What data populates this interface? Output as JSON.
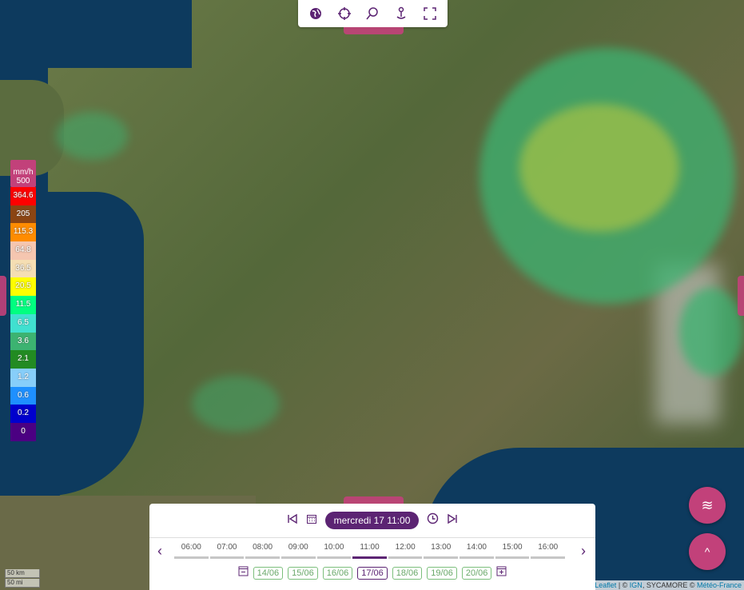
{
  "toolbar": {
    "icons": [
      "globe-icon",
      "locate-icon",
      "search-icon",
      "location-pin-icon",
      "fullscreen-icon"
    ]
  },
  "legend": {
    "unit": "mm/h",
    "max": "500",
    "colors": [
      "#ff0000",
      "#8b4513",
      "#ff8c00",
      "#f5c6b0",
      "#f5deb3",
      "#ffff00",
      "#00ff80",
      "#40e0d0",
      "#3cb371",
      "#228b22",
      "#87cefa",
      "#1e90ff",
      "#0000cd",
      "#4b0082"
    ],
    "values": [
      "364.6",
      "205",
      "115.3",
      "64.8",
      "36.5",
      "20.5",
      "11.5",
      "6.5",
      "3.6",
      "2.1",
      "1.2",
      "0.6",
      "0.2",
      "0"
    ]
  },
  "timeline": {
    "current": "mercredi 17 11:00",
    "hours": [
      "06:00",
      "07:00",
      "08:00",
      "09:00",
      "10:00",
      "11:00",
      "12:00",
      "13:00",
      "14:00",
      "15:00",
      "16:00"
    ],
    "selected_hour": "11:00",
    "days": [
      "14/06",
      "15/06",
      "16/06",
      "17/06",
      "18/06",
      "19/06",
      "20/06"
    ],
    "selected_day": "17/06"
  },
  "scale": {
    "km": "50 km",
    "mi": "50 mi"
  },
  "attribution": {
    "leaflet": "Leaflet",
    "sep": " | © ",
    "ign": "IGN",
    "mid": ", SYCAMORE © ",
    "mf": "Météo-France"
  },
  "colors": {
    "accent": "#c2417a",
    "primary": "#5c2473"
  }
}
